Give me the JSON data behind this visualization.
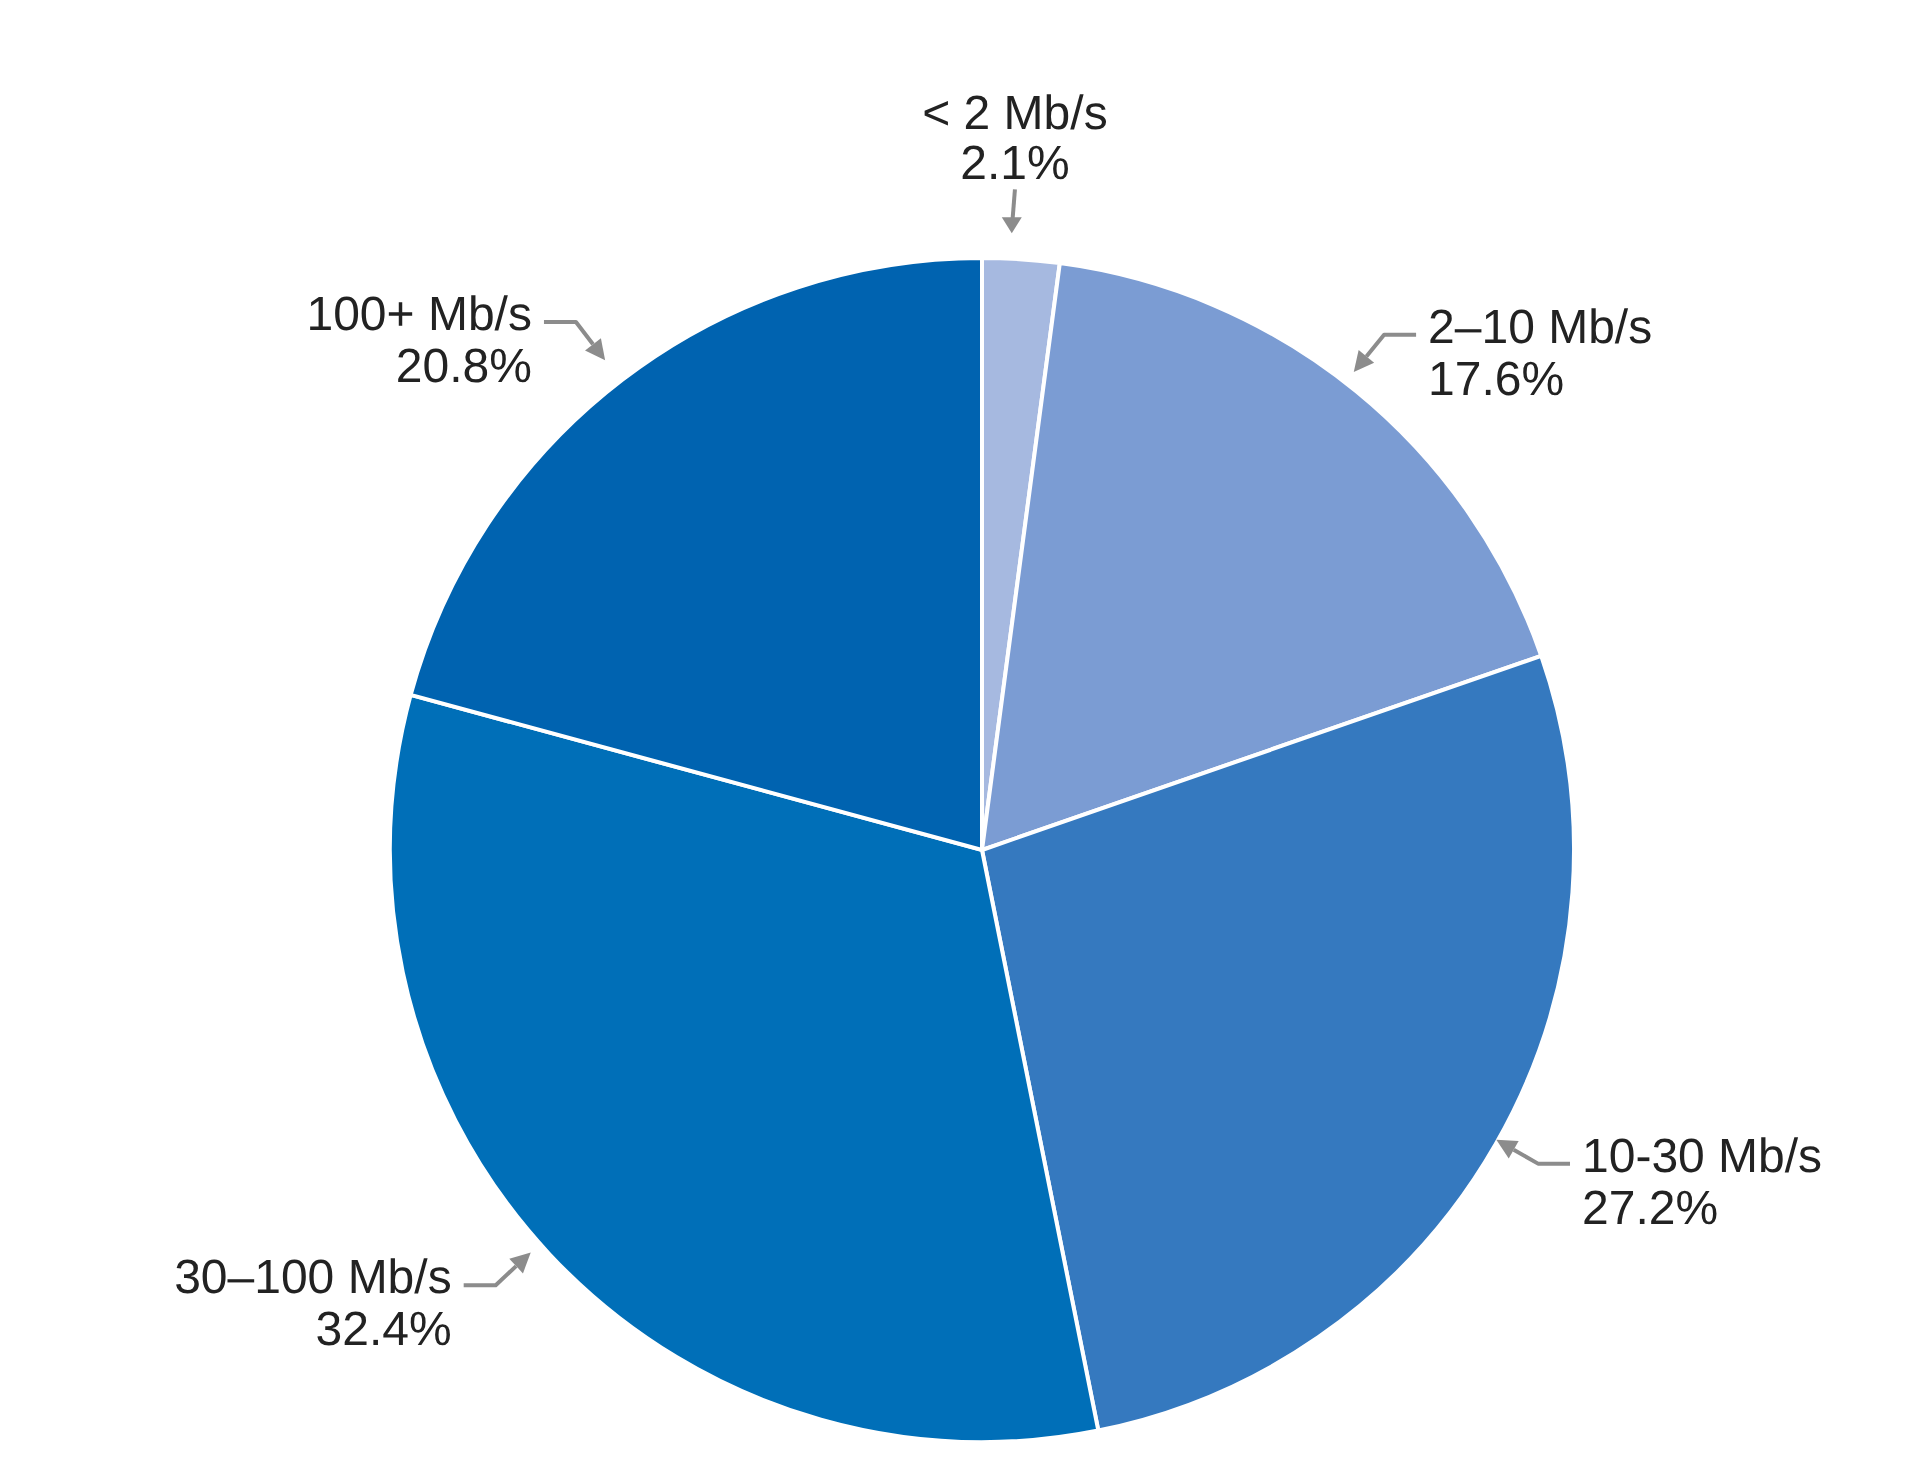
{
  "chart_data": {
    "type": "pie",
    "categories": [
      "< 2 Mb/s",
      "2–10 Mb/s",
      "10-30 Mb/s",
      "30–100 Mb/s",
      "100+ Mb/s"
    ],
    "values": [
      2.1,
      17.6,
      27.2,
      32.4,
      20.8
    ],
    "value_labels": [
      "2.1%",
      "17.6%",
      "27.2%",
      "32.4%",
      "20.8%"
    ],
    "colors": [
      "#a6b9e0",
      "#7b9cd3",
      "#3579bf",
      "#006fb8",
      "#0063b0"
    ]
  }
}
